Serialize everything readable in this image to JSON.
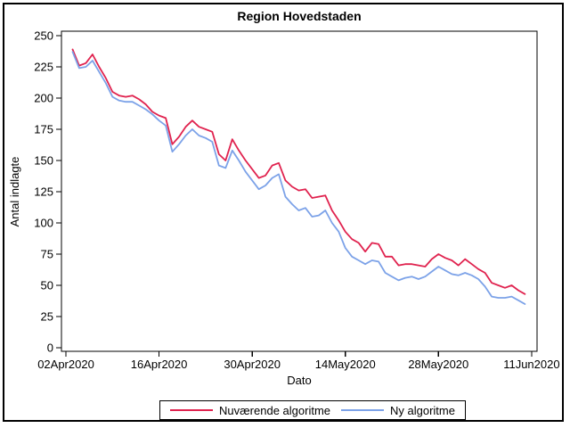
{
  "chart_data": {
    "type": "line",
    "title": "Region Hovedstaden",
    "xlabel": "Dato",
    "ylabel": "Antal indlagte",
    "ylim": [
      0,
      250
    ],
    "grid": false,
    "legend_position": "bottom",
    "y_ticks": [
      0,
      25,
      50,
      75,
      100,
      125,
      150,
      175,
      200,
      225,
      250
    ],
    "x_ticks": [
      {
        "label": "02Apr2020",
        "day": 0
      },
      {
        "label": "16Apr2020",
        "day": 14
      },
      {
        "label": "30Apr2020",
        "day": 28
      },
      {
        "label": "14May2020",
        "day": 42
      },
      {
        "label": "28May2020",
        "day": 56
      },
      {
        "label": "11Jun2020",
        "day": 70
      }
    ],
    "first_point_day_offset": 1,
    "x_step_days": 1,
    "series": [
      {
        "name": "Nuværende algoritme",
        "color": "#e0234f",
        "values": [
          239,
          226,
          228,
          235,
          225,
          216,
          205,
          202,
          201,
          202,
          199,
          195,
          189,
          186,
          184,
          163,
          169,
          177,
          182,
          177,
          175,
          173,
          155,
          150,
          167,
          158,
          150,
          143,
          136,
          138,
          146,
          148,
          134,
          129,
          126,
          127,
          120,
          121,
          122,
          110,
          102,
          93,
          87,
          84,
          77,
          84,
          83,
          73,
          73,
          66,
          67,
          67,
          66,
          65,
          71,
          75,
          72,
          70,
          66,
          71,
          67,
          63,
          60,
          52,
          50,
          48,
          50,
          46,
          43
        ]
      },
      {
        "name": "Ny algoritme",
        "color": "#7ca2e8",
        "values": [
          237,
          224,
          225,
          230,
          221,
          212,
          201,
          198,
          197,
          197,
          194,
          191,
          187,
          182,
          178,
          157,
          163,
          170,
          175,
          170,
          168,
          165,
          146,
          144,
          158,
          150,
          141,
          134,
          127,
          130,
          136,
          139,
          121,
          115,
          110,
          112,
          105,
          106,
          110,
          100,
          93,
          80,
          73,
          70,
          67,
          70,
          69,
          60,
          57,
          54,
          56,
          57,
          55,
          57,
          61,
          65,
          62,
          59,
          58,
          60,
          58,
          55,
          49,
          41,
          40,
          40,
          41,
          38,
          35
        ]
      }
    ],
    "axis_color": "#000000",
    "background_color": "#ffffff"
  }
}
